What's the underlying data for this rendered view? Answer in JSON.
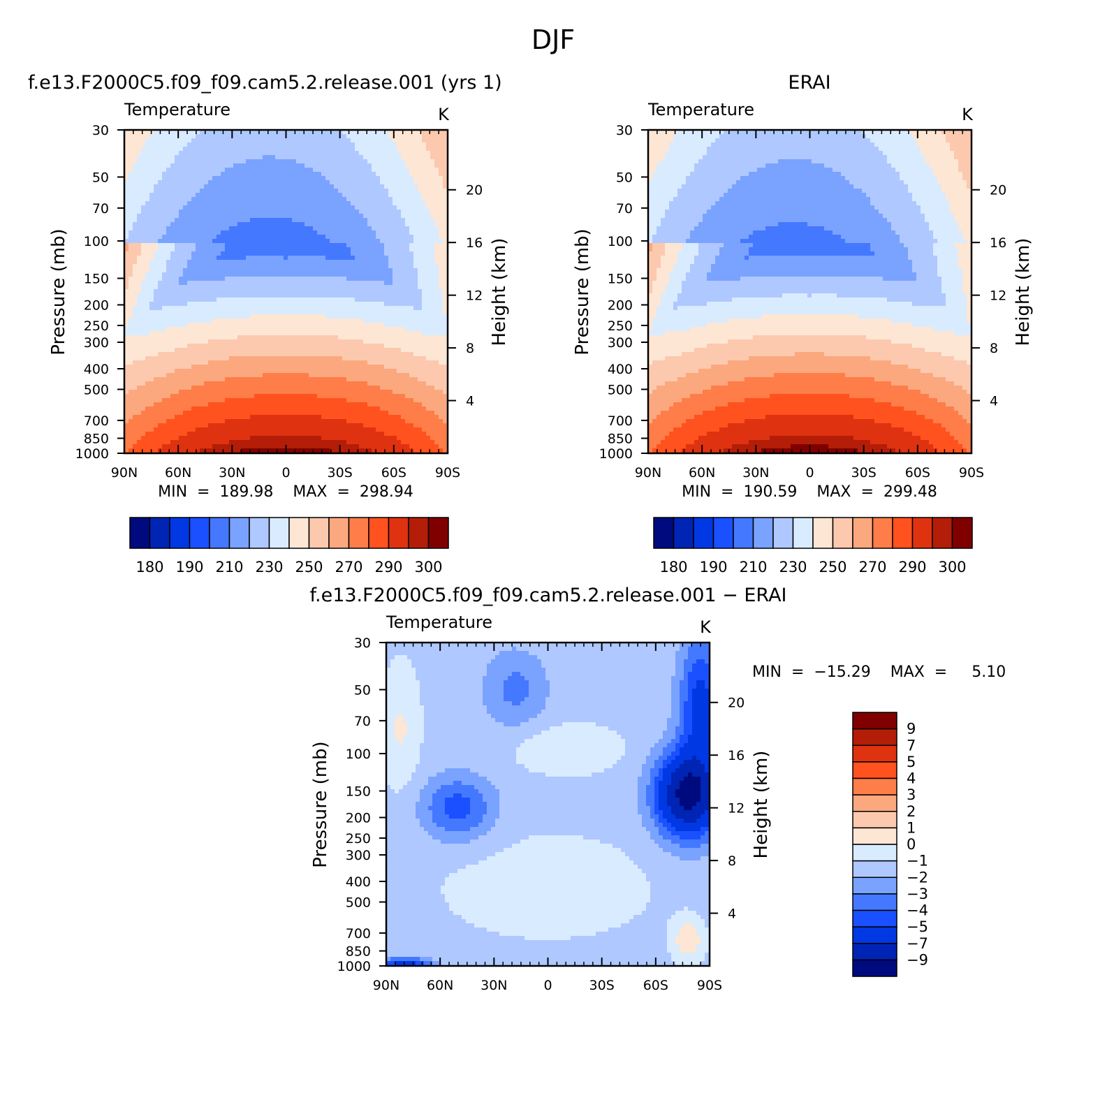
{
  "chart_data": {
    "type": "heatmap",
    "suptitle": "DJF",
    "panels": [
      {
        "id": "model",
        "case_title": "f.e13.F2000C5.f09_f09.cam5.2.release.001  (yrs  1)",
        "variable": "Temperature",
        "units": "K",
        "ylabel": "Pressure  (mb)",
        "y2label": "Height  (km)",
        "xticks": [
          "90N",
          "60N",
          "30N",
          "0",
          "30S",
          "60S",
          "90S"
        ],
        "yticks": [
          "30",
          "50",
          "70",
          "100",
          "150",
          "200",
          "250",
          "300",
          "400",
          "500",
          "700",
          "850",
          "1000"
        ],
        "y2ticks": [
          "20",
          "16",
          "12",
          "8",
          "4"
        ],
        "stats": "MIN  =  189.98    MAX  =  298.94",
        "min": 189.98,
        "max": 298.94,
        "colorbar": {
          "levels": [
            175,
            180,
            185,
            190,
            200,
            210,
            220,
            230,
            240,
            250,
            260,
            270,
            280,
            290,
            295,
            300
          ],
          "labels": [
            "180",
            "190",
            "210",
            "230",
            "250",
            "270",
            "290",
            "300"
          ]
        }
      },
      {
        "id": "obs",
        "case_title": "ERAI",
        "variable": "Temperature",
        "units": "K",
        "ylabel": "Pressure  (mb)",
        "y2label": "Height  (km)",
        "xticks": [
          "90N",
          "60N",
          "30N",
          "0",
          "30S",
          "60S",
          "90S"
        ],
        "yticks": [
          "30",
          "50",
          "70",
          "100",
          "150",
          "200",
          "250",
          "300",
          "400",
          "500",
          "700",
          "850",
          "1000"
        ],
        "y2ticks": [
          "20",
          "16",
          "12",
          "8",
          "4"
        ],
        "stats": "MIN  =  190.59    MAX  =  299.48",
        "min": 190.59,
        "max": 299.48,
        "colorbar": {
          "levels": [
            175,
            180,
            185,
            190,
            200,
            210,
            220,
            230,
            240,
            250,
            260,
            270,
            280,
            290,
            295,
            300
          ],
          "labels": [
            "180",
            "190",
            "210",
            "230",
            "250",
            "270",
            "290",
            "300"
          ]
        }
      },
      {
        "id": "diff",
        "case_title": "f.e13.F2000C5.f09_f09.cam5.2.release.001  −  ERAI",
        "variable": "Temperature",
        "units": "K",
        "ylabel": "Pressure  (mb)",
        "y2label": "Height  (km)",
        "xticks": [
          "90N",
          "60N",
          "30N",
          "0",
          "30S",
          "60S",
          "90S"
        ],
        "yticks": [
          "30",
          "50",
          "70",
          "100",
          "150",
          "200",
          "250",
          "300",
          "400",
          "500",
          "700",
          "850",
          "1000"
        ],
        "y2ticks": [
          "20",
          "16",
          "12",
          "8",
          "4"
        ],
        "stats": "MIN  =  −15.29    MAX  =     5.10",
        "min": -15.29,
        "max": 5.1,
        "colorbar": {
          "levels": [
            9,
            7,
            5,
            4,
            3,
            2,
            1,
            0,
            -1,
            -2,
            -3,
            -4,
            -5,
            -7,
            -9
          ],
          "labels": [
            "9",
            "7",
            "5",
            "4",
            "3",
            "2",
            "1",
            "0",
            "−1",
            "−2",
            "−3",
            "−4",
            "−5",
            "−7",
            "−9"
          ]
        }
      }
    ],
    "palette": [
      "#000a7f",
      "#0024b4",
      "#0038e4",
      "#1a50ff",
      "#4478ff",
      "#7aa2ff",
      "#afc8ff",
      "#d9ebff",
      "#fde6d4",
      "#fcc9ae",
      "#fba87f",
      "#ff7d48",
      "#ff521e",
      "#df3210",
      "#b41d08",
      "#800000"
    ]
  }
}
